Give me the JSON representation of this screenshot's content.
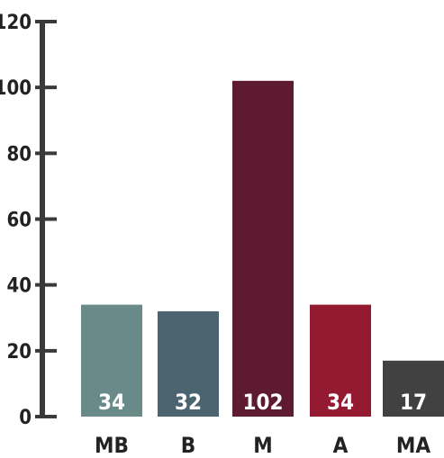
{
  "chart_data": {
    "type": "bar",
    "title": "",
    "xlabel": "",
    "ylabel": "",
    "categories": [
      "MB",
      "B",
      "M",
      "A",
      "MA"
    ],
    "values": [
      34,
      32,
      102,
      34,
      17
    ],
    "data_labels": [
      "34",
      "32",
      "102",
      "34",
      "17"
    ],
    "bar_colors": [
      "#6a8a89",
      "#4b6470",
      "#5e1a31",
      "#931a30",
      "#414141"
    ],
    "ylim": [
      0,
      120
    ],
    "yticks": [
      0,
      20,
      40,
      60,
      80,
      100,
      120
    ],
    "ytick_labels": [
      "0",
      "20",
      "40",
      "60",
      "80",
      "100",
      "120"
    ],
    "axis_color": "#3a3a3a",
    "grid": false,
    "legend": "none"
  }
}
